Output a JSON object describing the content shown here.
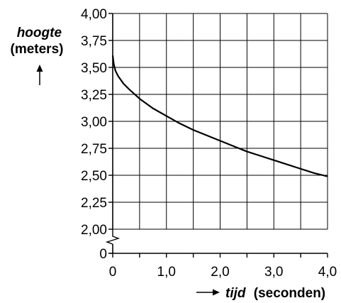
{
  "chart_data": {
    "type": "line",
    "ylabel_name": "hoogte",
    "ylabel_unit": "(meters)",
    "xlabel_name": "tijd",
    "xlabel_unit": "(seconden)",
    "xlim": [
      0,
      4.0
    ],
    "ylim": [
      2.0,
      4.0
    ],
    "y_axis_break": true,
    "y_break_origin_label": "0",
    "grid": true,
    "x_ticks": [
      {
        "value": 0,
        "label": "0"
      },
      {
        "value": 1.0,
        "label": "1,0"
      },
      {
        "value": 2.0,
        "label": "2,0"
      },
      {
        "value": 3.0,
        "label": "3,0"
      },
      {
        "value": 4.0,
        "label": "4,0"
      }
    ],
    "y_ticks": [
      {
        "value": 2.0,
        "label": "2,00"
      },
      {
        "value": 2.25,
        "label": "2,25"
      },
      {
        "value": 2.5,
        "label": "2,50"
      },
      {
        "value": 2.75,
        "label": "2,75"
      },
      {
        "value": 3.0,
        "label": "3,00"
      },
      {
        "value": 3.25,
        "label": "3,25"
      },
      {
        "value": 3.5,
        "label": "3,50"
      },
      {
        "value": 3.75,
        "label": "3,75"
      },
      {
        "value": 4.0,
        "label": "4,00"
      }
    ],
    "series": [
      {
        "x": [
          0,
          0.02,
          0.05,
          0.1,
          0.2,
          0.3,
          0.5,
          0.75,
          1.0,
          1.25,
          1.5,
          1.75,
          2.0,
          2.25,
          2.5,
          2.75,
          3.0,
          3.25,
          3.5,
          3.75,
          4.0
        ],
        "y": [
          3.61,
          3.53,
          3.47,
          3.42,
          3.35,
          3.3,
          3.21,
          3.12,
          3.05,
          2.98,
          2.92,
          2.87,
          2.82,
          2.77,
          2.72,
          2.68,
          2.64,
          2.6,
          2.56,
          2.52,
          2.49
        ]
      }
    ]
  }
}
